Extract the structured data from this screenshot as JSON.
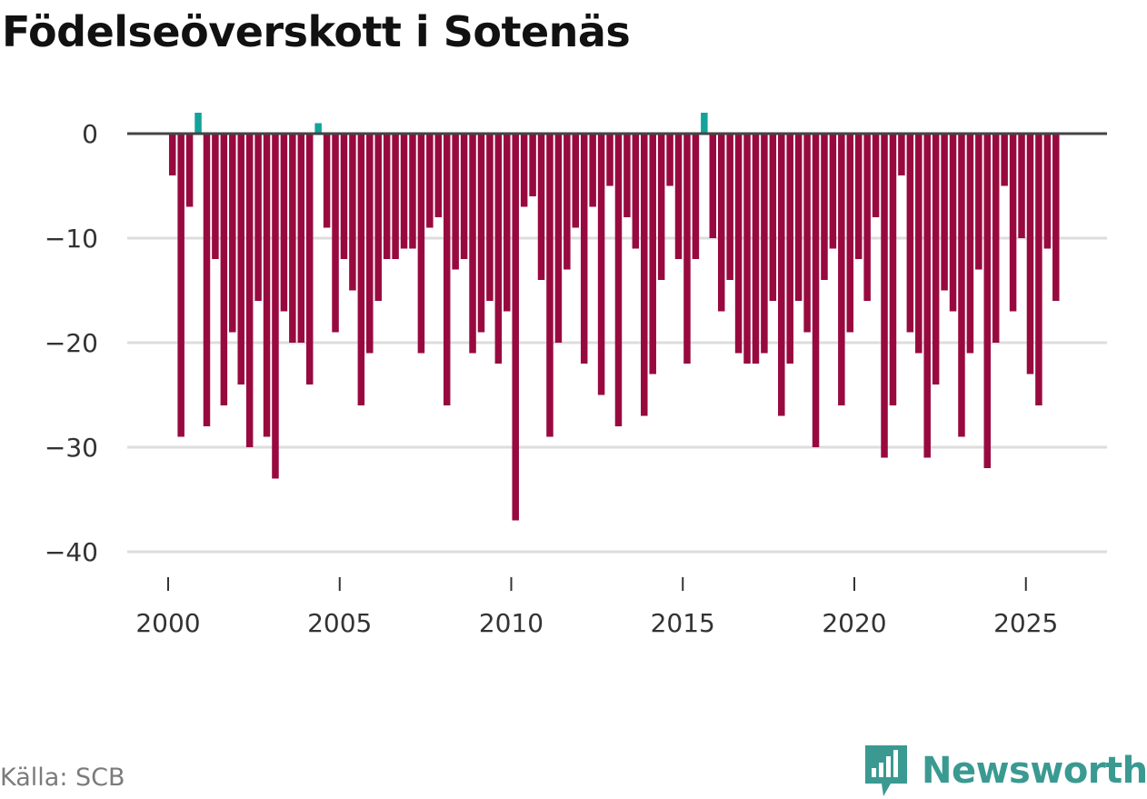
{
  "chart_data": {
    "type": "bar",
    "title": "Födelseöverskott i Sotenäs",
    "xlabel": "",
    "ylabel": "",
    "ylim": [
      -40,
      2
    ],
    "y_ticks": [
      0,
      -10,
      -20,
      -30,
      -40
    ],
    "y_tick_labels": [
      "0",
      "−10",
      "−20",
      "−30",
      "−40"
    ],
    "x_ticks": [
      2000,
      2005,
      2010,
      2015,
      2020,
      2025
    ],
    "x_tick_labels": [
      "2000",
      "2005",
      "2010",
      "2015",
      "2020",
      "2025"
    ],
    "x_start": 2000.125,
    "x_step": 0.25,
    "values": [
      -4,
      -29,
      -7,
      2,
      -28,
      -12,
      -26,
      -19,
      -24,
      -30,
      -16,
      -29,
      -33,
      -17,
      -20,
      -20,
      -24,
      1,
      -9,
      -19,
      -12,
      -15,
      -26,
      -21,
      -16,
      -12,
      -12,
      -11,
      -11,
      -21,
      -9,
      -8,
      -26,
      -13,
      -12,
      -21,
      -19,
      -16,
      -22,
      -17,
      -37,
      -7,
      -6,
      -14,
      -29,
      -20,
      -13,
      -9,
      -22,
      -7,
      -25,
      -5,
      -28,
      -8,
      -11,
      -27,
      -23,
      -14,
      -5,
      -12,
      -22,
      -12,
      2,
      -10,
      -17,
      -14,
      -21,
      -22,
      -22,
      -21,
      -16,
      -27,
      -22,
      -16,
      -19,
      -30,
      -14,
      -11,
      -26,
      -19,
      -12,
      -16,
      -8,
      -31,
      -26,
      -4,
      -19,
      -21,
      -31,
      -24,
      -15,
      -17,
      -29,
      -21,
      -13,
      -32,
      -20,
      -5,
      -17,
      -10,
      -23,
      -26,
      -11,
      -16
    ],
    "colors": {
      "positive": "#12a39a",
      "negative": "#980a3f",
      "zero_line": "#444444",
      "grid": "#dddddd"
    }
  },
  "footer": {
    "source": "Källa: SCB",
    "brand": "Newsworthy"
  }
}
